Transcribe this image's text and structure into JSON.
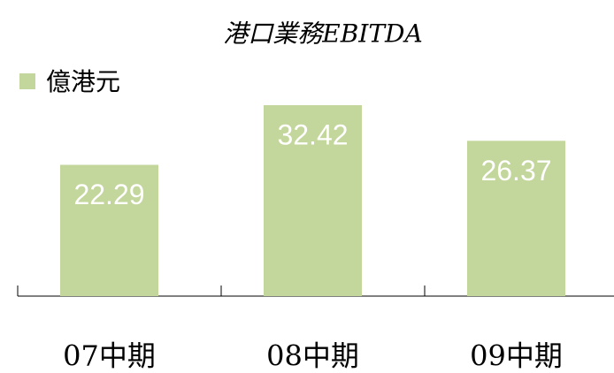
{
  "chart_data": {
    "type": "bar",
    "title": "港口業務EBITDA",
    "series": [
      {
        "name": "億港元",
        "color": "#c3d69b",
        "values": [
          22.29,
          32.42,
          26.37
        ]
      }
    ],
    "categories": [
      "07中期",
      "08中期",
      "09中期"
    ]
  }
}
